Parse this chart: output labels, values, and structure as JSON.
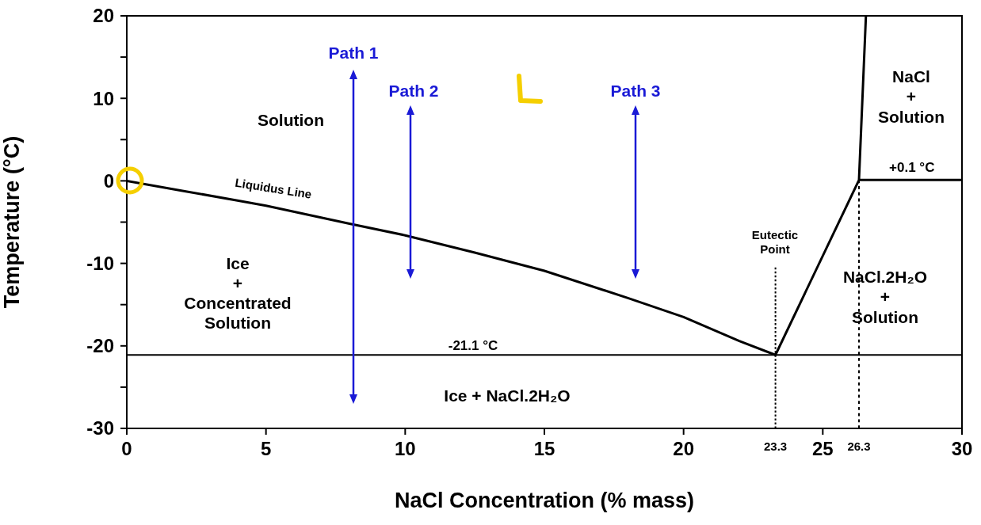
{
  "chart_data": {
    "type": "line",
    "xlabel": "NaCl Concentration (% mass)",
    "ylabel": "Temperature (°C)",
    "xlim": [
      0,
      30
    ],
    "xticks": [
      0,
      5,
      10,
      15,
      20,
      25,
      30
    ],
    "ylim": [
      -30,
      20
    ],
    "yticks": [
      -30,
      {
        "value": -25,
        "label": null
      },
      -20,
      {
        "value": -15,
        "label": null
      },
      -10,
      {
        "value": -5,
        "label": null
      },
      0,
      {
        "value": 5,
        "label": null
      },
      10,
      {
        "value": 15,
        "label": null
      },
      20
    ],
    "line_style": "solid",
    "series": [
      {
        "color": "#000000",
        "x": [
          0,
          2,
          5,
          8,
          10,
          12.5,
          15,
          18,
          20,
          22,
          23.3,
          26.3,
          26.55
        ],
        "values": [
          0,
          -1.2,
          -3.0,
          -5.2,
          -6.6,
          -8.7,
          -10.9,
          -14.2,
          -16.5,
          -19.4,
          -21.1,
          0.1,
          20
        ]
      },
      {
        "color": "#000000",
        "x": [
          26.3,
          30
        ],
        "values": [
          0.1,
          0.1
        ]
      },
      {
        "color": "#000000",
        "x": [
          23.3,
          23.3
        ],
        "values": [
          -30,
          -10.5
        ],
        "line_style": "dotted"
      },
      {
        "color": "#000000",
        "x": [
          26.3,
          26.3
        ],
        "values": [
          -30,
          0.1
        ],
        "line_style": "dotted"
      }
    ],
    "ref_lines": [
      {
        "axis": "y",
        "value": -21.1,
        "label": "-21.1 °C",
        "color": "#000000"
      }
    ],
    "annotations": [
      "Solution",
      "Liquidus Line",
      "Ice\n+\nConcentrated\nSolution",
      "Ice + NaCl.2H₂O",
      "NaCl\n+\nSolution",
      "NaCl.2H₂O\n+\nSolution",
      "Eutectic\nPoint",
      "Path 1",
      "Path 2",
      "Path 3",
      {
        "text": "+0.1 °C",
        "x": 28.2,
        "y": 0.1
      },
      {
        "text": "23.3",
        "x": 23.3,
        "y": -30
      },
      {
        "text": "26.3",
        "x": 26.3,
        "y": -30
      }
    ]
  }
}
